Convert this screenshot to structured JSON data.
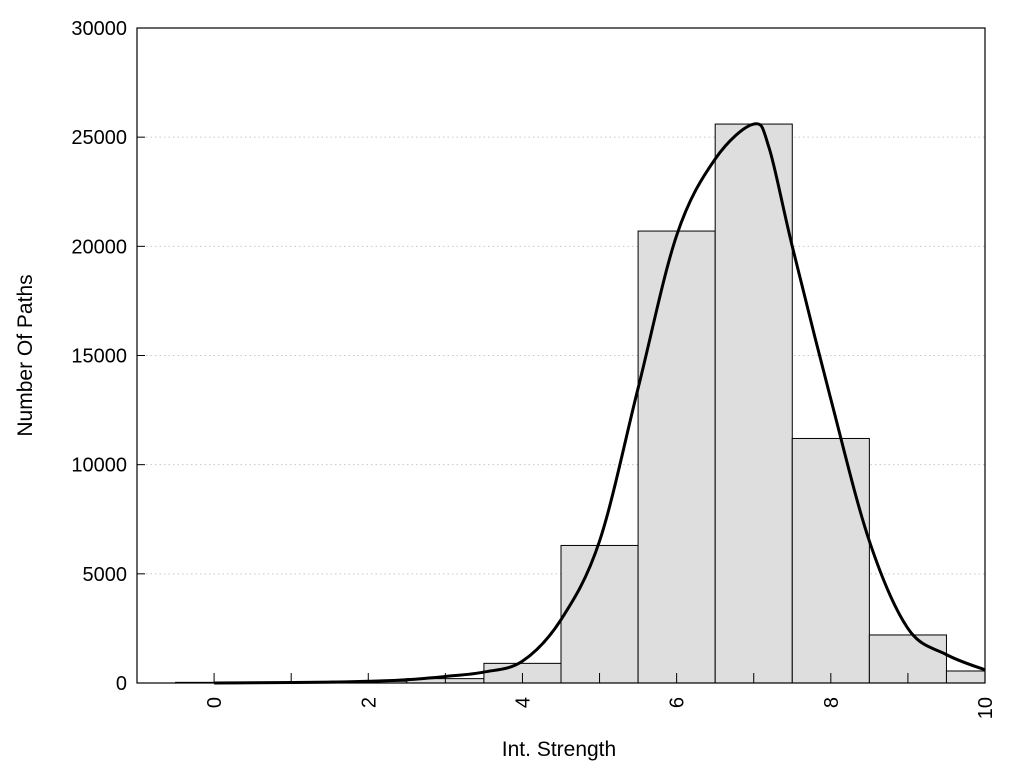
{
  "chart_data": {
    "type": "bar",
    "title": "",
    "xlabel": "Int. Strength",
    "ylabel": "Number Of Paths",
    "xlim": [
      -1,
      10
    ],
    "ylim": [
      0,
      30000
    ],
    "x_ticks": [
      0,
      2,
      4,
      6,
      8,
      10
    ],
    "y_ticks": [
      0,
      5000,
      10000,
      15000,
      20000,
      25000,
      30000
    ],
    "grid": "horizontal dotted",
    "bars": {
      "x": [
        0,
        1,
        2,
        3,
        4,
        5,
        6,
        7,
        8,
        9,
        10
      ],
      "values": [
        30,
        40,
        80,
        200,
        900,
        6300,
        20700,
        25600,
        11200,
        2200,
        550
      ],
      "color": "#dedede"
    },
    "curve": {
      "x": [
        0,
        0.5,
        1,
        1.5,
        2,
        2.5,
        3,
        3.5,
        4,
        4.5,
        5,
        5.5,
        6,
        6.5,
        7,
        7.2,
        7.5,
        8,
        8.5,
        9,
        9.5,
        10
      ],
      "y": [
        0,
        10,
        20,
        40,
        80,
        150,
        300,
        500,
        1000,
        2900,
        6500,
        13500,
        20500,
        24000,
        25600,
        24500,
        20000,
        13000,
        6500,
        2500,
        1300,
        600
      ],
      "color": "#000000"
    }
  }
}
